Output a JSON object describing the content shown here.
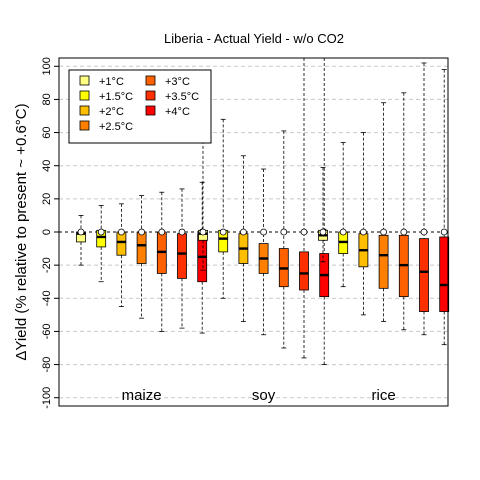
{
  "chart_data": {
    "type": "boxplot",
    "title": "Liberia - Actual Yield - w/o CO2",
    "ylabel": "ΔYield (% relative to present ~ +0.6°C)",
    "ylim": [
      -105,
      105
    ],
    "yticks": [
      -100,
      -80,
      -60,
      -40,
      -20,
      0,
      20,
      40,
      60,
      80,
      100
    ],
    "grid": "horizontal-dashed",
    "legend_position": "top-left",
    "legend": [
      {
        "label": "+1°C",
        "color": "#FFFF80"
      },
      {
        "label": "+1.5°C",
        "color": "#FFFF00"
      },
      {
        "label": "+2°C",
        "color": "#FFBF00"
      },
      {
        "label": "+2.5°C",
        "color": "#FF8000"
      },
      {
        "label": "+3°C",
        "color": "#FF6000"
      },
      {
        "label": "+3.5°C",
        "color": "#FF3000"
      },
      {
        "label": "+4°C",
        "color": "#FF0000"
      }
    ],
    "groups": [
      {
        "name": "maize",
        "boxes": [
          {
            "min": -20,
            "q1": -6,
            "median": -1,
            "q3": 0,
            "max": 10
          },
          {
            "min": -30,
            "q1": -9,
            "median": -3,
            "q3": 1,
            "max": 16
          },
          {
            "min": -45,
            "q1": -14,
            "median": -6,
            "q3": 0,
            "max": 17
          },
          {
            "min": -52,
            "q1": -19,
            "median": -8,
            "q3": 0,
            "max": 22
          },
          {
            "min": -60,
            "q1": -25,
            "median": -12,
            "q3": 0,
            "max": 24
          },
          {
            "min": -58,
            "q1": -28,
            "median": -13,
            "q3": -1,
            "max": 26
          },
          {
            "min": -61,
            "q1": -30,
            "median": -15,
            "q3": -1,
            "max": 30
          }
        ]
      },
      {
        "name": "soy",
        "boxes": [
          {
            "min": -23,
            "q1": -5,
            "median": -1,
            "q3": 1,
            "max": 55
          },
          {
            "min": -40,
            "q1": -12,
            "median": -4,
            "q3": 1,
            "max": 68
          },
          {
            "min": -54,
            "q1": -19,
            "median": -10,
            "q3": -1,
            "max": 46
          },
          {
            "min": -62,
            "q1": -25,
            "median": -16,
            "q3": -7,
            "max": 38
          },
          {
            "min": -70,
            "q1": -33,
            "median": -22,
            "q3": -10,
            "max": 61
          },
          {
            "min": -76,
            "q1": -35,
            "median": -25,
            "q3": -12,
            "max": 105
          },
          {
            "min": -80,
            "q1": -39,
            "median": -26,
            "q3": -13,
            "max": 105
          }
        ]
      },
      {
        "name": "rice",
        "boxes": [
          {
            "min": -18,
            "q1": -5,
            "median": -2,
            "q3": 1,
            "max": 39
          },
          {
            "min": -33,
            "q1": -13,
            "median": -6,
            "q3": 0,
            "max": 54
          },
          {
            "min": -50,
            "q1": -21,
            "median": -11,
            "q3": -1,
            "max": 60
          },
          {
            "min": -54,
            "q1": -34,
            "median": -14,
            "q3": -2,
            "max": 78
          },
          {
            "min": -59,
            "q1": -39,
            "median": -20,
            "q3": -2,
            "max": 84
          },
          {
            "min": -62,
            "q1": -48,
            "median": -24,
            "q3": -4,
            "max": 102
          },
          {
            "min": -68,
            "q1": -48,
            "median": -32,
            "q3": -3,
            "max": 98
          }
        ]
      }
    ]
  }
}
